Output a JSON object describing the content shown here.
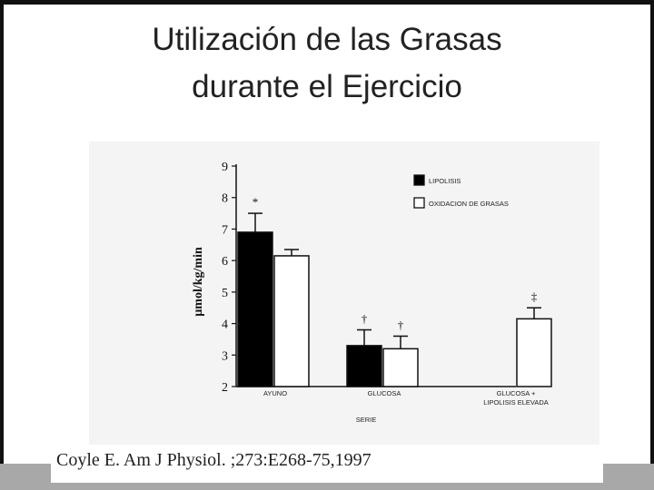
{
  "slide": {
    "title_line1": "Utilización de las Grasas",
    "title_line2": "durante el Ejercicio",
    "citation": "Coyle E. Am J Physiol. ;273:E268-75,1997"
  },
  "chart_data": {
    "type": "bar",
    "ylabel": "µmol/kg/min",
    "xlabel": "SERIE",
    "ylim": [
      2,
      9
    ],
    "yticks": [
      2,
      3,
      4,
      5,
      6,
      7,
      8,
      9
    ],
    "categories": [
      "AYUNO",
      "GLUCOSA",
      "GLUCOSA + LIPOLISIS ELEVADA"
    ],
    "category_lines": [
      [
        "AYUNO"
      ],
      [
        "GLUCOSA"
      ],
      [
        "GLUCOSA +",
        "LIPOLISIS ELEVADA"
      ]
    ],
    "series": [
      {
        "name": "LIPOLISIS",
        "color": "#000000",
        "values": [
          6.9,
          3.3,
          null
        ],
        "errors": [
          0.6,
          0.5,
          null
        ],
        "markers": [
          "*",
          "†",
          null
        ]
      },
      {
        "name": "OXIDACION DE GRASAS",
        "color": "#ffffff",
        "values": [
          6.15,
          3.2,
          4.15
        ],
        "errors": [
          0.2,
          0.4,
          0.35
        ],
        "markers": [
          null,
          "†",
          "‡"
        ]
      }
    ],
    "legend_position": "top-right",
    "grid": false
  }
}
